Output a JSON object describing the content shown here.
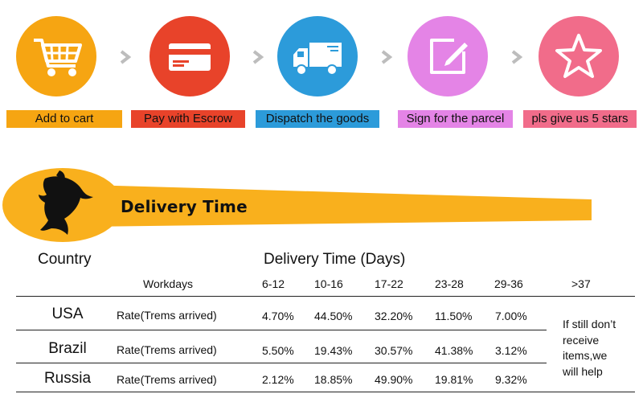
{
  "steps": [
    {
      "label": "Add to cart",
      "icon": "shopping-cart-icon",
      "color": "#F6A512",
      "label_bg": "#F6A512"
    },
    {
      "label": "Pay with Escrow",
      "icon": "credit-card-icon",
      "color": "#E8432A",
      "label_bg": "#E8432A"
    },
    {
      "label": "Dispatch the goods",
      "icon": "truck-icon",
      "color": "#2C9BDA",
      "label_bg": "#2C9BDA"
    },
    {
      "label": "Sign for the parcel",
      "icon": "edit-icon",
      "color": "#E484E6",
      "label_bg": "#E484E6"
    },
    {
      "label": "pls give us 5 stars",
      "icon": "star-icon",
      "color": "#F16C8A",
      "label_bg": "#F16C8A"
    }
  ],
  "banner": {
    "title": "Delivery Time",
    "icon": "dolphin-icon",
    "color": "#F9B01D"
  },
  "table": {
    "country_header": "Country",
    "delivery_header": "Delivery Time (Days)",
    "workdays_label": "Workdays",
    "ranges": [
      "6-12",
      "10-16",
      "17-22",
      "23-28",
      "29-36",
      ">37"
    ],
    "rows": [
      {
        "country": "USA",
        "label": "Rate(Trems arrived)",
        "values": [
          "4.70%",
          "44.50%",
          "32.20%",
          "11.50%",
          "7.00%"
        ]
      },
      {
        "country": "Brazil",
        "label": "Rate(Trems arrived)",
        "values": [
          "5.50%",
          "19.43%",
          "30.57%",
          "41.38%",
          "3.12%"
        ]
      },
      {
        "country": "Russia",
        "label": "Rate(Trems arrived)",
        "values": [
          "2.12%",
          "18.85%",
          "49.90%",
          "19.81%",
          "9.32%"
        ]
      }
    ],
    "note": "If still don’t receive items,we will help"
  }
}
